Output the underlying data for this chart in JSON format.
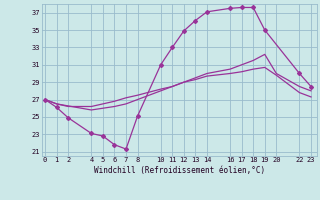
{
  "xlabel": "Windchill (Refroidissement éolien,°C)",
  "bg_color": "#cce8e8",
  "grid_color": "#99bbcc",
  "line_color": "#993399",
  "x_ticks": [
    0,
    1,
    2,
    4,
    5,
    6,
    7,
    8,
    10,
    11,
    12,
    13,
    14,
    16,
    17,
    18,
    19,
    20,
    22,
    23
  ],
  "ylim": [
    20.5,
    38.0
  ],
  "yticks": [
    21,
    23,
    25,
    27,
    29,
    31,
    33,
    35,
    37
  ],
  "series1_x": [
    0,
    1,
    2,
    4,
    5,
    6,
    7,
    8,
    10,
    11,
    12,
    13,
    14,
    16,
    17,
    18,
    19,
    22,
    23
  ],
  "series1_y": [
    27.0,
    26.1,
    24.9,
    23.1,
    22.8,
    21.8,
    21.3,
    25.1,
    31.0,
    33.0,
    34.9,
    36.1,
    37.1,
    37.5,
    37.6,
    37.6,
    35.0,
    30.0,
    28.5
  ],
  "series2_x": [
    0,
    1,
    4,
    5,
    6,
    7,
    8,
    10,
    11,
    12,
    13,
    14,
    16,
    17,
    18,
    19,
    20,
    22,
    23
  ],
  "series2_y": [
    27.0,
    26.5,
    25.8,
    26.0,
    26.2,
    26.5,
    27.0,
    28.0,
    28.5,
    29.0,
    29.5,
    30.0,
    30.5,
    31.0,
    31.5,
    32.2,
    30.0,
    28.5,
    28.0
  ],
  "series3_x": [
    0,
    1,
    2,
    4,
    5,
    6,
    7,
    8,
    10,
    11,
    12,
    13,
    14,
    16,
    17,
    18,
    19,
    20,
    22,
    23
  ],
  "series3_y": [
    27.0,
    26.5,
    26.2,
    26.2,
    26.5,
    26.8,
    27.2,
    27.5,
    28.2,
    28.5,
    29.0,
    29.3,
    29.7,
    30.0,
    30.2,
    30.5,
    30.7,
    29.8,
    27.8,
    27.3
  ]
}
